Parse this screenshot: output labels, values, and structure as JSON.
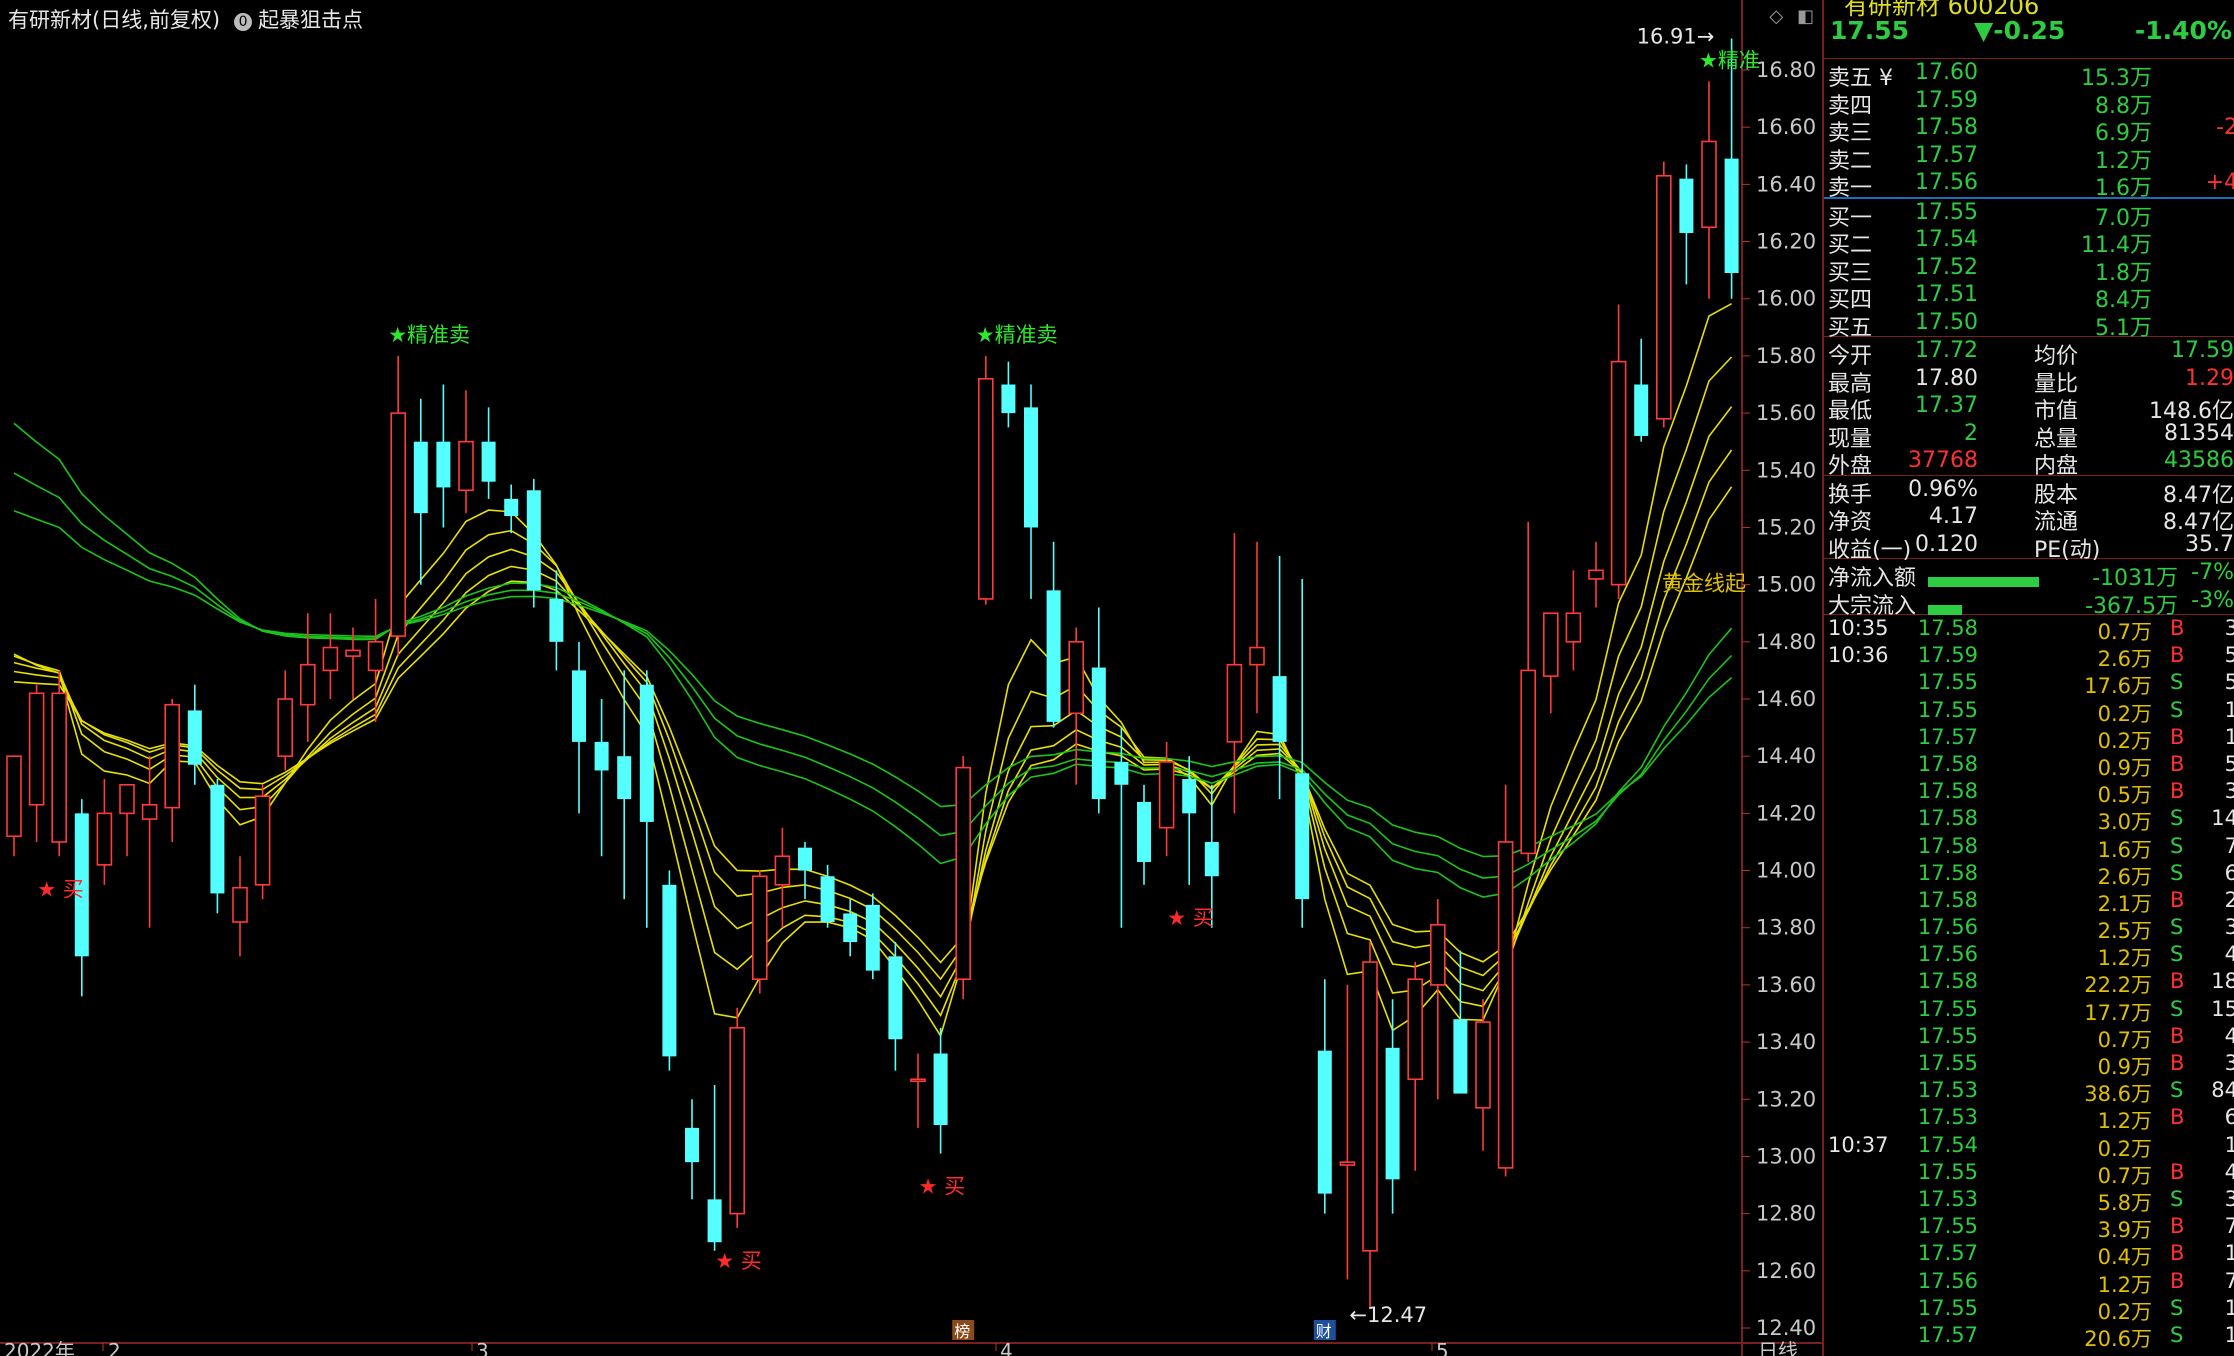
{
  "header": {
    "title": "有研新材(日线,前复权)",
    "indicator_index": "0",
    "indicator_name": "起暴狙击点",
    "icon_diamond": "diamond-icon",
    "icon_window": "window-icon"
  },
  "chart_data": {
    "type": "candlestick",
    "y_axis_ticks": [
      "16.80",
      "16.60",
      "16.40",
      "16.20",
      "16.00",
      "15.80",
      "15.60",
      "15.40",
      "15.20",
      "15.00",
      "14.80",
      "14.60",
      "14.40",
      "14.20",
      "14.00",
      "13.80",
      "13.60",
      "13.40",
      "13.20",
      "13.00",
      "12.80",
      "12.60",
      "12.40"
    ],
    "ylim": [
      12.35,
      16.95
    ],
    "x_axis_labels": [
      "2022年",
      "2",
      "3",
      "4",
      "5",
      "日线"
    ],
    "high_label": "16.91",
    "low_label": "12.47",
    "candles": [
      {
        "o": 14.12,
        "h": 14.4,
        "l": 14.05,
        "c": 14.4
      },
      {
        "o": 14.23,
        "h": 14.65,
        "l": 14.1,
        "c": 14.62
      },
      {
        "o": 14.1,
        "h": 14.7,
        "l": 14.05,
        "c": 14.62
      },
      {
        "o": 14.2,
        "h": 14.25,
        "l": 13.56,
        "c": 13.7
      },
      {
        "o": 14.02,
        "h": 14.32,
        "l": 13.95,
        "c": 14.2
      },
      {
        "o": 14.2,
        "h": 14.3,
        "l": 14.05,
        "c": 14.3
      },
      {
        "o": 14.18,
        "h": 14.4,
        "l": 13.8,
        "c": 14.23
      },
      {
        "o": 14.22,
        "h": 14.6,
        "l": 14.1,
        "c": 14.58
      },
      {
        "o": 14.56,
        "h": 14.65,
        "l": 14.3,
        "c": 14.37
      },
      {
        "o": 14.3,
        "h": 14.32,
        "l": 13.85,
        "c": 13.92
      },
      {
        "o": 13.82,
        "h": 14.05,
        "l": 13.7,
        "c": 13.94
      },
      {
        "o": 13.95,
        "h": 14.3,
        "l": 13.9,
        "c": 14.26
      },
      {
        "o": 14.4,
        "h": 14.7,
        "l": 14.35,
        "c": 14.6
      },
      {
        "o": 14.58,
        "h": 14.9,
        "l": 14.45,
        "c": 14.72
      },
      {
        "o": 14.7,
        "h": 14.9,
        "l": 14.6,
        "c": 14.78
      },
      {
        "o": 14.75,
        "h": 14.85,
        "l": 14.6,
        "c": 14.77
      },
      {
        "o": 14.7,
        "h": 14.95,
        "l": 14.52,
        "c": 14.8
      },
      {
        "o": 14.82,
        "h": 15.8,
        "l": 14.75,
        "c": 15.6
      },
      {
        "o": 15.5,
        "h": 15.65,
        "l": 15.0,
        "c": 15.25
      },
      {
        "o": 15.5,
        "h": 15.7,
        "l": 15.2,
        "c": 15.34
      },
      {
        "o": 15.33,
        "h": 15.68,
        "l": 15.25,
        "c": 15.5
      },
      {
        "o": 15.5,
        "h": 15.62,
        "l": 15.3,
        "c": 15.36
      },
      {
        "o": 15.3,
        "h": 15.35,
        "l": 15.18,
        "c": 15.24
      },
      {
        "o": 15.33,
        "h": 15.37,
        "l": 14.92,
        "c": 14.98
      },
      {
        "o": 14.95,
        "h": 15.05,
        "l": 14.7,
        "c": 14.8
      },
      {
        "o": 14.7,
        "h": 14.8,
        "l": 14.2,
        "c": 14.45
      },
      {
        "o": 14.45,
        "h": 14.6,
        "l": 14.05,
        "c": 14.35
      },
      {
        "o": 14.4,
        "h": 14.7,
        "l": 13.9,
        "c": 14.25
      },
      {
        "o": 14.65,
        "h": 14.7,
        "l": 13.8,
        "c": 14.17
      },
      {
        "o": 13.95,
        "h": 14.0,
        "l": 13.3,
        "c": 13.35
      },
      {
        "o": 13.1,
        "h": 13.2,
        "l": 12.85,
        "c": 12.98
      },
      {
        "o": 12.85,
        "h": 13.25,
        "l": 12.67,
        "c": 12.7
      },
      {
        "o": 12.8,
        "h": 13.52,
        "l": 12.75,
        "c": 13.45
      },
      {
        "o": 13.62,
        "h": 14.0,
        "l": 13.57,
        "c": 13.98
      },
      {
        "o": 13.95,
        "h": 14.15,
        "l": 13.8,
        "c": 14.05
      },
      {
        "o": 14.08,
        "h": 14.1,
        "l": 13.9,
        "c": 14.0
      },
      {
        "o": 13.98,
        "h": 14.02,
        "l": 13.8,
        "c": 13.82
      },
      {
        "o": 13.85,
        "h": 13.9,
        "l": 13.7,
        "c": 13.75
      },
      {
        "o": 13.88,
        "h": 13.92,
        "l": 13.62,
        "c": 13.65
      },
      {
        "o": 13.7,
        "h": 13.75,
        "l": 13.3,
        "c": 13.41
      },
      {
        "o": 13.27,
        "h": 13.36,
        "l": 13.1,
        "c": 13.27
      },
      {
        "o": 13.36,
        "h": 13.45,
        "l": 13.01,
        "c": 13.11
      },
      {
        "o": 13.62,
        "h": 14.4,
        "l": 13.55,
        "c": 14.36
      },
      {
        "o": 14.95,
        "h": 15.8,
        "l": 14.93,
        "c": 15.72
      },
      {
        "o": 15.7,
        "h": 15.78,
        "l": 15.55,
        "c": 15.6
      },
      {
        "o": 15.62,
        "h": 15.7,
        "l": 14.95,
        "c": 15.2
      },
      {
        "o": 14.98,
        "h": 15.15,
        "l": 14.5,
        "c": 14.52
      },
      {
        "o": 14.55,
        "h": 14.85,
        "l": 14.3,
        "c": 14.8
      },
      {
        "o": 14.71,
        "h": 14.92,
        "l": 14.2,
        "c": 14.25
      },
      {
        "o": 14.38,
        "h": 14.5,
        "l": 13.8,
        "c": 14.3
      },
      {
        "o": 14.24,
        "h": 14.3,
        "l": 13.95,
        "c": 14.03
      },
      {
        "o": 14.15,
        "h": 14.45,
        "l": 14.05,
        "c": 14.38
      },
      {
        "o": 14.32,
        "h": 14.4,
        "l": 13.95,
        "c": 14.2
      },
      {
        "o": 14.1,
        "h": 14.3,
        "l": 13.8,
        "c": 13.98
      },
      {
        "o": 14.45,
        "h": 15.18,
        "l": 14.2,
        "c": 14.72
      },
      {
        "o": 14.72,
        "h": 15.15,
        "l": 14.55,
        "c": 14.78
      },
      {
        "o": 14.68,
        "h": 15.1,
        "l": 14.25,
        "c": 14.45
      },
      {
        "o": 14.34,
        "h": 15.02,
        "l": 13.8,
        "c": 13.9
      },
      {
        "o": 13.37,
        "h": 13.62,
        "l": 12.8,
        "c": 12.87
      },
      {
        "o": 12.97,
        "h": 13.6,
        "l": 12.57,
        "c": 12.98
      },
      {
        "o": 12.67,
        "h": 13.75,
        "l": 12.47,
        "c": 13.68
      },
      {
        "o": 13.38,
        "h": 13.55,
        "l": 12.8,
        "c": 12.92
      },
      {
        "o": 13.27,
        "h": 13.68,
        "l": 12.95,
        "c": 13.62
      },
      {
        "o": 13.6,
        "h": 13.9,
        "l": 13.2,
        "c": 13.81
      },
      {
        "o": 13.48,
        "h": 13.72,
        "l": 13.25,
        "c": 13.22
      },
      {
        "o": 13.17,
        "h": 13.55,
        "l": 13.02,
        "c": 13.47
      },
      {
        "o": 12.96,
        "h": 14.3,
        "l": 12.93,
        "c": 14.1
      },
      {
        "o": 14.06,
        "h": 15.22,
        "l": 14.03,
        "c": 14.7
      },
      {
        "o": 14.68,
        "h": 14.9,
        "l": 14.55,
        "c": 14.9
      },
      {
        "o": 14.8,
        "h": 15.05,
        "l": 14.7,
        "c": 14.9
      },
      {
        "o": 15.02,
        "h": 15.15,
        "l": 14.92,
        "c": 15.05
      },
      {
        "o": 15.0,
        "h": 15.98,
        "l": 14.95,
        "c": 15.78
      },
      {
        "o": 15.7,
        "h": 15.86,
        "l": 15.5,
        "c": 15.52
      },
      {
        "o": 15.58,
        "h": 16.48,
        "l": 15.55,
        "c": 16.43
      },
      {
        "o": 16.42,
        "h": 16.47,
        "l": 16.05,
        "c": 16.23
      },
      {
        "o": 16.25,
        "h": 16.76,
        "l": 16.0,
        "c": 16.55
      },
      {
        "o": 16.49,
        "h": 16.91,
        "l": 16.0,
        "c": 16.09
      }
    ],
    "signals": [
      {
        "type": "buy",
        "label": "★ 买",
        "at": 2
      },
      {
        "type": "sell",
        "label": "★精准卖",
        "at": 17
      },
      {
        "type": "buy",
        "label": "★ 买",
        "at": 32
      },
      {
        "type": "buy",
        "label": "★ 买",
        "at": 41
      },
      {
        "type": "sell",
        "label": "★精准卖",
        "at": 43
      },
      {
        "type": "buy",
        "label": "★ 买",
        "at": 52
      },
      {
        "type": "sell",
        "label": "★精准",
        "at": 75
      }
    ],
    "annotation_gold": "黄金线起",
    "events": [
      {
        "label": "榜",
        "at": 42
      },
      {
        "label": "财",
        "at": 58
      }
    ]
  },
  "side": {
    "code_partial": "有研新材  600206",
    "price": "17.55",
    "change": "▼-0.25",
    "pct": "-1.40%",
    "order_book_sell": [
      {
        "label": "卖五 ¥",
        "price": "17.60",
        "vol": "15.3万",
        "diff": ""
      },
      {
        "label": "卖四",
        "price": "17.59",
        "vol": "8.8万",
        "diff": ""
      },
      {
        "label": "卖三",
        "price": "17.58",
        "vol": "6.9万",
        "diff": "-2"
      },
      {
        "label": "卖二",
        "price": "17.57",
        "vol": "1.2万",
        "diff": ""
      },
      {
        "label": "卖一",
        "price": "17.56",
        "vol": "1.6万",
        "diff": "+4"
      }
    ],
    "order_book_buy": [
      {
        "label": "买一",
        "price": "17.55",
        "vol": "7.0万"
      },
      {
        "label": "买二",
        "price": "17.54",
        "vol": "11.4万"
      },
      {
        "label": "买三",
        "price": "17.52",
        "vol": "1.8万"
      },
      {
        "label": "买四",
        "price": "17.51",
        "vol": "8.4万"
      },
      {
        "label": "买五",
        "price": "17.50",
        "vol": "5.1万"
      }
    ],
    "stats1": [
      {
        "l1": "今开",
        "v1": "17.72",
        "c1": "g",
        "l2": "均价",
        "v2": "17.59",
        "c2": "g"
      },
      {
        "l1": "最高",
        "v1": "17.80",
        "c1": "w",
        "l2": "量比",
        "v2": "1.29",
        "c2": "r"
      },
      {
        "l1": "最低",
        "v1": "17.37",
        "c1": "g",
        "l2": "市值",
        "v2": "148.6亿",
        "c2": "w"
      },
      {
        "l1": "现量",
        "v1": "2",
        "c1": "g",
        "l2": "总量",
        "v2": "81354",
        "c2": "w"
      },
      {
        "l1": "外盘",
        "v1": "37768",
        "c1": "r",
        "l2": "内盘",
        "v2": "43586",
        "c2": "g"
      }
    ],
    "stats2": [
      {
        "l1": "换手",
        "v1": "0.96%",
        "l2": "股本",
        "v2": "8.47亿"
      },
      {
        "l1": "净资",
        "v1": "4.17",
        "l2": "流通",
        "v2": "8.47亿"
      },
      {
        "l1": "收益(一)",
        "v1": "0.120",
        "l2": "PE(动)",
        "v2": "35.7"
      }
    ],
    "flows": [
      {
        "label": "净流入额",
        "value": "-1031万",
        "pct": "-7%",
        "fill": 0.65
      },
      {
        "label": "大宗流入",
        "value": "-367.5万",
        "pct": "-3%",
        "fill": 0.2
      }
    ],
    "ticks": [
      {
        "t": "10:35",
        "p": "17.58",
        "v": "0.7万",
        "bs": "B",
        "n": "3"
      },
      {
        "t": "10:36",
        "p": "17.59",
        "v": "2.6万",
        "bs": "B",
        "n": "5"
      },
      {
        "t": "",
        "p": "17.55",
        "v": "17.6万",
        "bs": "S",
        "n": "5"
      },
      {
        "t": "",
        "p": "17.55",
        "v": "0.2万",
        "bs": "S",
        "n": "1"
      },
      {
        "t": "",
        "p": "17.57",
        "v": "0.2万",
        "bs": "B",
        "n": "1"
      },
      {
        "t": "",
        "p": "17.58",
        "v": "0.9万",
        "bs": "B",
        "n": "5"
      },
      {
        "t": "",
        "p": "17.58",
        "v": "0.5万",
        "bs": "B",
        "n": "3"
      },
      {
        "t": "",
        "p": "17.58",
        "v": "3.0万",
        "bs": "S",
        "n": "14"
      },
      {
        "t": "",
        "p": "17.58",
        "v": "1.6万",
        "bs": "S",
        "n": "7"
      },
      {
        "t": "",
        "p": "17.58",
        "v": "2.6万",
        "bs": "S",
        "n": "6"
      },
      {
        "t": "",
        "p": "17.58",
        "v": "2.1万",
        "bs": "B",
        "n": "2"
      },
      {
        "t": "",
        "p": "17.56",
        "v": "2.5万",
        "bs": "S",
        "n": "3"
      },
      {
        "t": "",
        "p": "17.56",
        "v": "1.2万",
        "bs": "S",
        "n": "4"
      },
      {
        "t": "",
        "p": "17.58",
        "v": "22.2万",
        "bs": "B",
        "n": "18"
      },
      {
        "t": "",
        "p": "17.55",
        "v": "17.7万",
        "bs": "S",
        "n": "15"
      },
      {
        "t": "",
        "p": "17.55",
        "v": "0.7万",
        "bs": "B",
        "n": "4"
      },
      {
        "t": "",
        "p": "17.55",
        "v": "0.9万",
        "bs": "B",
        "n": "3"
      },
      {
        "t": "",
        "p": "17.53",
        "v": "38.6万",
        "bs": "S",
        "n": "84"
      },
      {
        "t": "",
        "p": "17.53",
        "v": "1.2万",
        "bs": "B",
        "n": "6"
      },
      {
        "t": "10:37",
        "p": "17.54",
        "v": "0.2万",
        "bs": "",
        "n": "1"
      },
      {
        "t": "",
        "p": "17.55",
        "v": "0.7万",
        "bs": "B",
        "n": "4"
      },
      {
        "t": "",
        "p": "17.53",
        "v": "5.8万",
        "bs": "S",
        "n": "3"
      },
      {
        "t": "",
        "p": "17.55",
        "v": "3.9万",
        "bs": "B",
        "n": "7"
      },
      {
        "t": "",
        "p": "17.57",
        "v": "0.4万",
        "bs": "B",
        "n": "1"
      },
      {
        "t": "",
        "p": "17.56",
        "v": "1.2万",
        "bs": "B",
        "n": "7"
      },
      {
        "t": "",
        "p": "17.55",
        "v": "0.2万",
        "bs": "S",
        "n": "1"
      },
      {
        "t": "",
        "p": "17.57",
        "v": "20.6万",
        "bs": "S",
        "n": "1"
      }
    ]
  }
}
